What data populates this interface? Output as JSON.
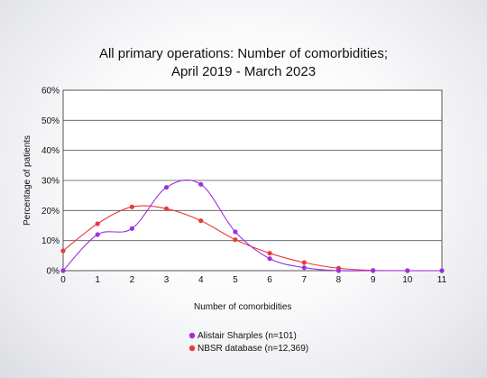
{
  "chart_data": {
    "type": "line",
    "title": [
      "All primary operations: Number of comorbidities;",
      "April 2019 - March 2023"
    ],
    "xlabel": "Number of comorbidities",
    "ylabel": "Percentage of patients",
    "x": [
      0,
      1,
      2,
      3,
      4,
      5,
      6,
      7,
      8,
      9,
      10,
      11
    ],
    "xlim": [
      0,
      11
    ],
    "ylim": [
      0,
      60
    ],
    "y_ticks": [
      0,
      10,
      20,
      30,
      40,
      50,
      60
    ],
    "y_tick_labels": [
      "0%",
      "10%",
      "20%",
      "30%",
      "40%",
      "50%",
      "60%"
    ],
    "grid": true,
    "legend_position": "bottom",
    "series": [
      {
        "name": "Alistair Sharples (n=101)",
        "color": "#9b30e0",
        "values": [
          0,
          12,
          14,
          27.7,
          28.7,
          12.9,
          4,
          1,
          0,
          0,
          0,
          0
        ]
      },
      {
        "name": "NBSR database (n=12,369)",
        "color": "#e83a3a",
        "values": [
          6.6,
          15.6,
          21.2,
          20.6,
          16.6,
          10.3,
          5.8,
          2.7,
          0.8,
          0.1,
          0,
          0
        ]
      }
    ]
  }
}
